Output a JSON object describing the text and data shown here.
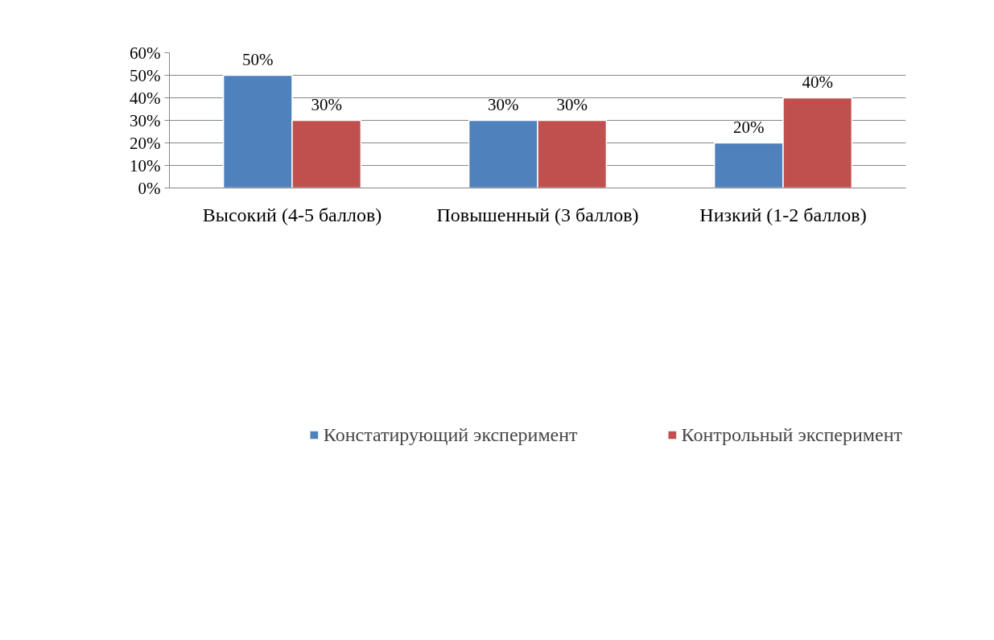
{
  "chart_data": {
    "type": "bar",
    "categories": [
      "Высокий (4-5 баллов)",
      "Повышенный (3 баллов)",
      "Низкий (1-2 баллов)"
    ],
    "series": [
      {
        "name": "Констатирующий эксперимент",
        "color": "#4f81bd",
        "values": [
          50,
          30,
          20
        ],
        "value_labels": [
          "50%",
          "30%",
          "20%"
        ]
      },
      {
        "name": "Контрольный эксперимент",
        "color": "#c0504d",
        "values": [
          30,
          30,
          40
        ],
        "value_labels": [
          "30%",
          "30%",
          "40%"
        ]
      }
    ],
    "ylim": [
      0,
      60
    ],
    "yticks": [
      {
        "value": 0,
        "label": "0%"
      },
      {
        "value": 10,
        "label": "10%"
      },
      {
        "value": 20,
        "label": "20%"
      },
      {
        "value": 30,
        "label": "30%"
      },
      {
        "value": 40,
        "label": "40%"
      },
      {
        "value": 50,
        "label": "50%"
      },
      {
        "value": 60,
        "label": "60%"
      }
    ],
    "grid": "y",
    "legend": "bottom"
  }
}
